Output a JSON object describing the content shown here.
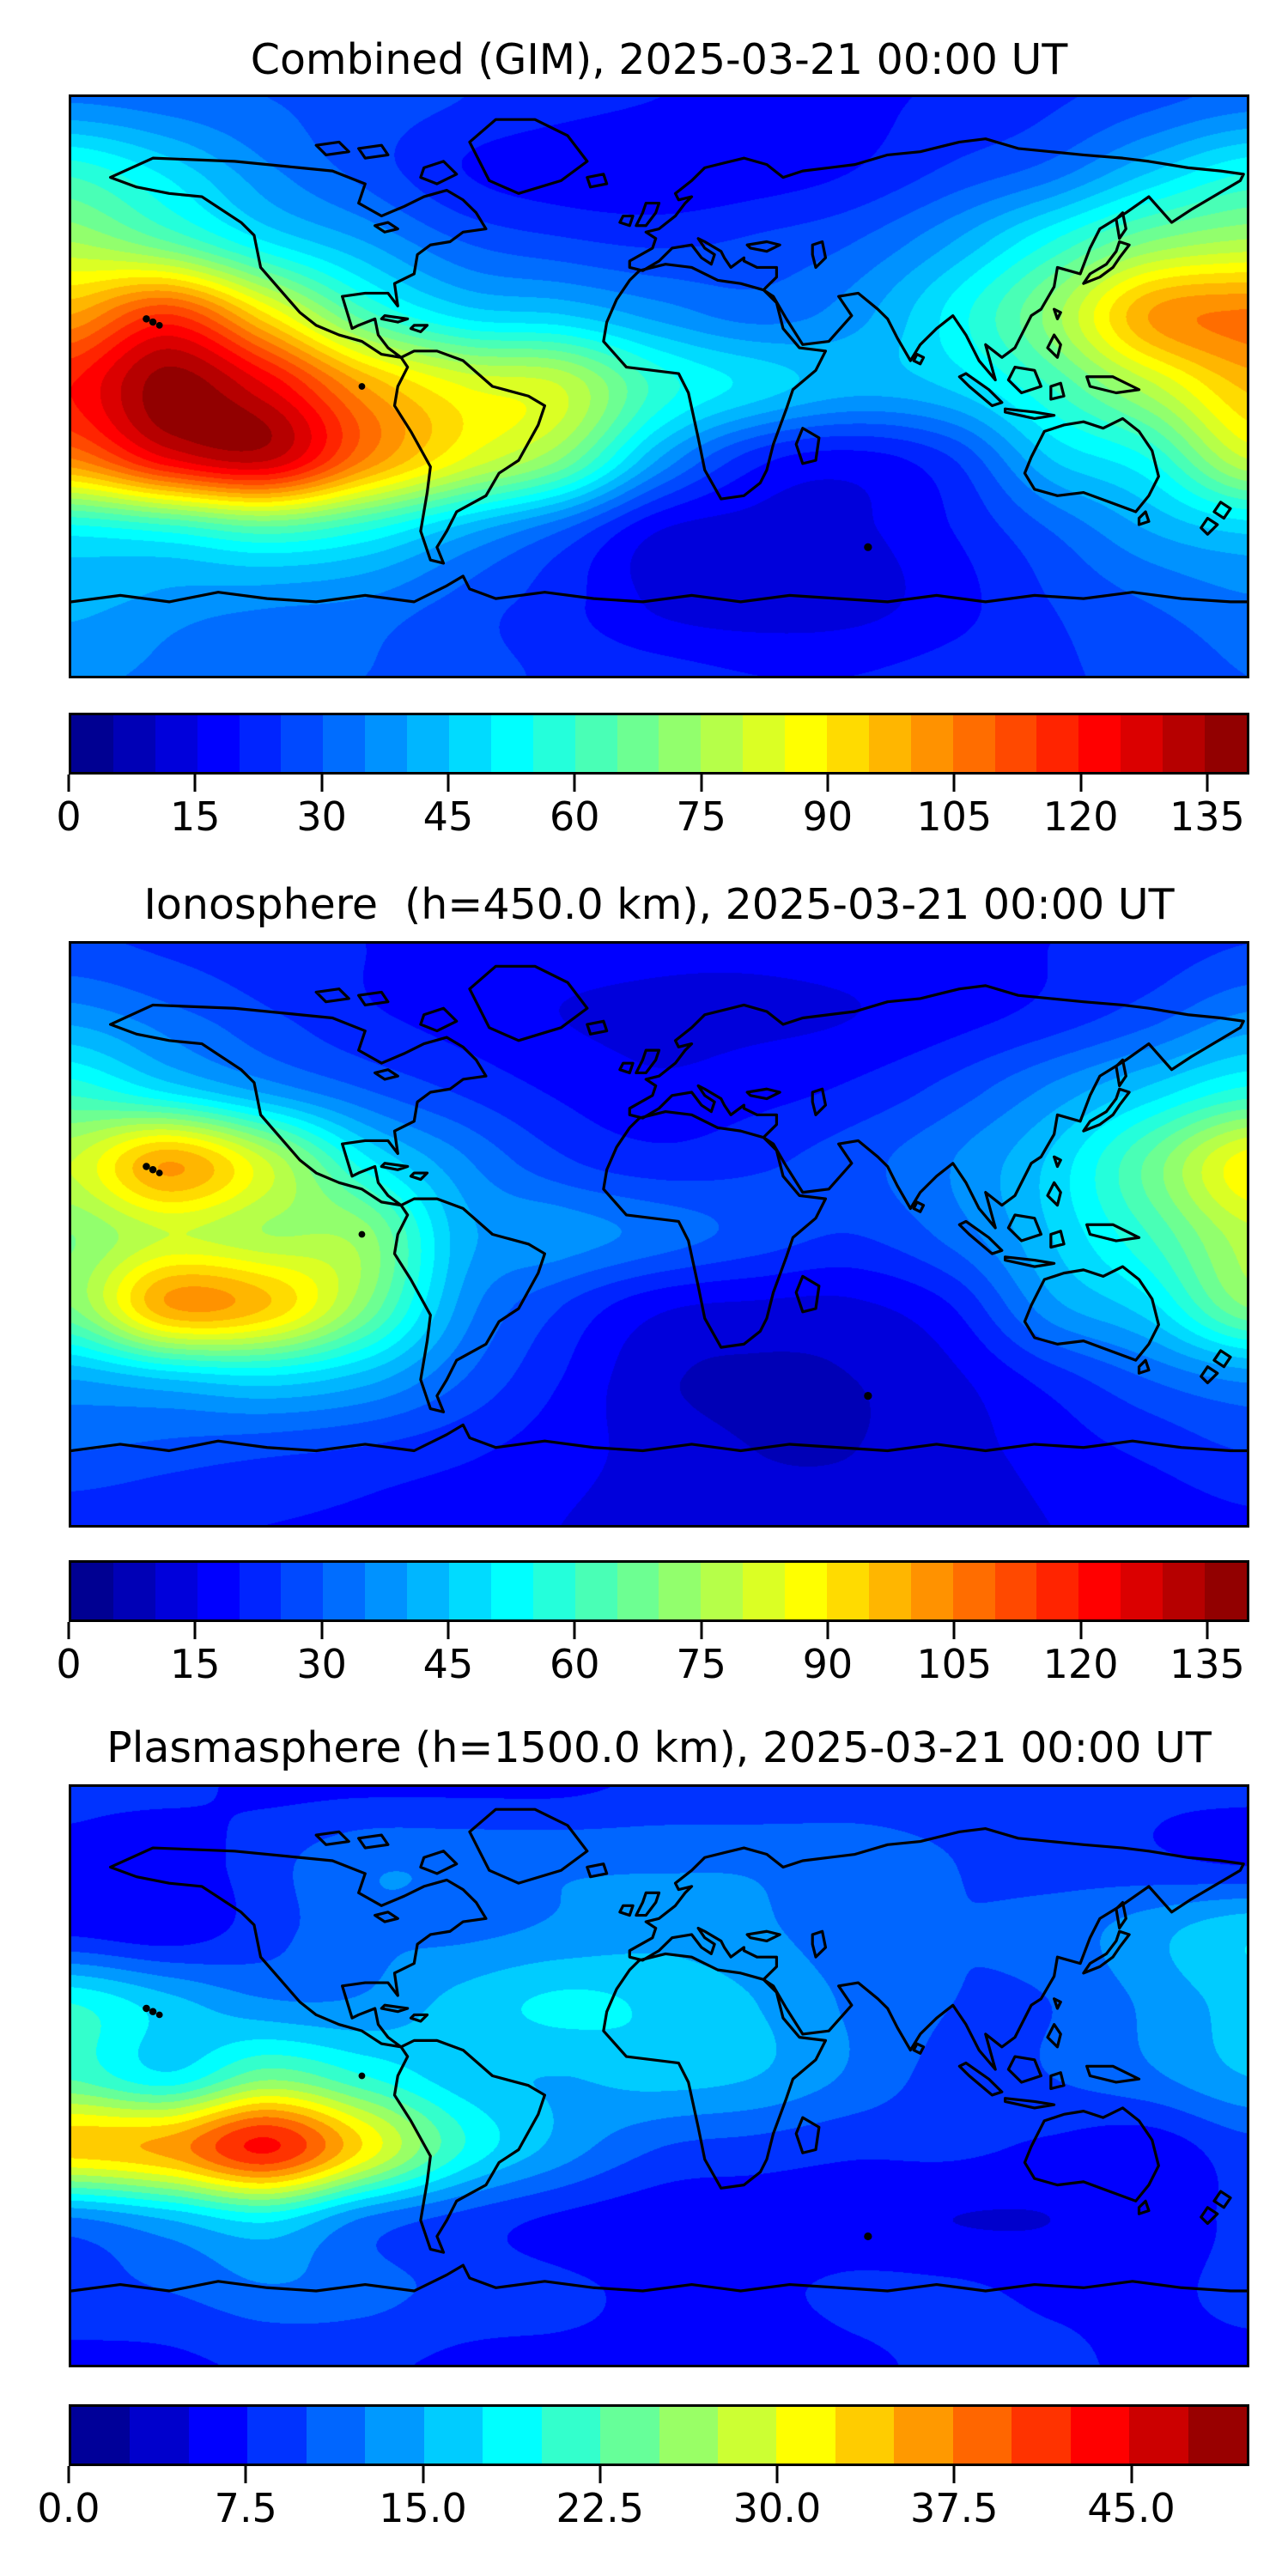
{
  "figure": {
    "background": "#ffffff",
    "text_color": "#000000"
  },
  "panels": [
    {
      "title": "Combined (GIM), 2025-03-21 00:00 UT"
    },
    {
      "title": "Ionosphere  (h=450.0 km), 2025-03-21 00:00 UT"
    },
    {
      "title": "Plasmasphere (h=1500.0 km), 2025-03-21 00:00 UT"
    }
  ],
  "chart_data": [
    {
      "type": "heatmap",
      "title": "Combined (GIM), 2025-03-21 00:00 UT",
      "colormap": "jet",
      "projection": "equirectangular world map with black coastlines",
      "xlabel": "",
      "ylabel": "",
      "lon": [
        -180,
        -150,
        -120,
        -90,
        -60,
        -30,
        0,
        30,
        60,
        90,
        120,
        150,
        180
      ],
      "lat": [
        80,
        60,
        40,
        20,
        0,
        -20,
        -40,
        -60,
        -80
      ],
      "values": [
        [
          34,
          32,
          30,
          28,
          25,
          22,
          20,
          19,
          19,
          21,
          24,
          28,
          32
        ],
        [
          58,
          48,
          36,
          28,
          20,
          17,
          16,
          17,
          20,
          26,
          32,
          44,
          54
        ],
        [
          75,
          65,
          50,
          40,
          30,
          26,
          24,
          26,
          30,
          40,
          55,
          70,
          76
        ],
        [
          100,
          115,
          90,
          62,
          48,
          45,
          38,
          33,
          38,
          52,
          72,
          100,
          106
        ],
        [
          120,
          138,
          125,
          100,
          85,
          80,
          58,
          48,
          42,
          46,
          60,
          78,
          96
        ],
        [
          105,
          125,
          131,
          105,
          85,
          70,
          40,
          22,
          18,
          25,
          45,
          55,
          80
        ],
        [
          52,
          56,
          62,
          55,
          42,
          30,
          15,
          13,
          14,
          20,
          30,
          40,
          46
        ],
        [
          42,
          38,
          36,
          34,
          28,
          22,
          14,
          12,
          13,
          18,
          25,
          30,
          34
        ],
        [
          36,
          34,
          32,
          30,
          27,
          24,
          22,
          20,
          20,
          22,
          24,
          27,
          30
        ]
      ],
      "vmin": 0,
      "vmax": 140,
      "contour_step": 5,
      "colorbar": {
        "orientation": "horizontal",
        "tick_values": [
          0,
          15,
          30,
          45,
          60,
          75,
          90,
          105,
          120,
          135
        ],
        "tick_labels": [
          "0",
          "15",
          "30",
          "45",
          "60",
          "75",
          "90",
          "105",
          "120",
          "135"
        ]
      }
    },
    {
      "type": "heatmap",
      "title": "Ionosphere  (h=450.0 km), 2025-03-21 00:00 UT",
      "colormap": "jet",
      "projection": "equirectangular world map with black coastlines",
      "xlabel": "",
      "ylabel": "",
      "lon": [
        -180,
        -150,
        -120,
        -90,
        -60,
        -30,
        0,
        30,
        60,
        90,
        120,
        150,
        180
      ],
      "lat": [
        80,
        60,
        40,
        20,
        0,
        -20,
        -40,
        -60,
        -80
      ],
      "values": [
        [
          26,
          24,
          22,
          20,
          18,
          17,
          16,
          16,
          17,
          18,
          20,
          22,
          25
        ],
        [
          38,
          32,
          26,
          21,
          18,
          15,
          14,
          14,
          15,
          18,
          22,
          28,
          36
        ],
        [
          58,
          48,
          38,
          30,
          24,
          19,
          16,
          18,
          21,
          27,
          36,
          46,
          56
        ],
        [
          80,
          100,
          80,
          52,
          36,
          26,
          22,
          24,
          28,
          35,
          46,
          66,
          88
        ],
        [
          70,
          80,
          75,
          72,
          42,
          38,
          33,
          28,
          25,
          32,
          45,
          60,
          78
        ],
        [
          70,
          100,
          95,
          70,
          38,
          25,
          16,
          14,
          14,
          20,
          38,
          48,
          70
        ],
        [
          40,
          45,
          48,
          42,
          30,
          20,
          11,
          9,
          10,
          14,
          22,
          30,
          36
        ],
        [
          30,
          28,
          26,
          24,
          21,
          17,
          13,
          10,
          10,
          13,
          17,
          21,
          25
        ],
        [
          22,
          21,
          20,
          19,
          17,
          15,
          13,
          12,
          12,
          13,
          15,
          17,
          19
        ]
      ],
      "vmin": 0,
      "vmax": 140,
      "contour_step": 5,
      "colorbar": {
        "orientation": "horizontal",
        "tick_values": [
          0,
          15,
          30,
          45,
          60,
          75,
          90,
          105,
          120,
          135
        ],
        "tick_labels": [
          "0",
          "15",
          "30",
          "45",
          "60",
          "75",
          "90",
          "105",
          "120",
          "135"
        ]
      }
    },
    {
      "type": "heatmap",
      "title": "Plasmasphere (h=1500.0 km), 2025-03-21 00:00 UT",
      "colormap": "jet",
      "projection": "equirectangular world map with black coastlines",
      "xlabel": "",
      "ylabel": "",
      "lon": [
        -180,
        -150,
        -120,
        -90,
        -60,
        -30,
        0,
        30,
        60,
        90,
        120,
        150,
        180
      ],
      "lat": [
        80,
        60,
        40,
        20,
        0,
        -20,
        -40,
        -60,
        -80
      ],
      "values": [
        [
          8,
          8,
          7,
          7,
          7,
          7,
          8,
          8,
          9,
          9,
          9,
          8,
          8
        ],
        [
          7,
          6,
          9,
          12,
          12,
          12,
          12,
          12,
          11,
          10,
          9,
          8,
          7
        ],
        [
          7,
          6,
          9,
          12,
          12,
          13,
          14,
          13,
          11,
          10,
          11,
          14,
          17
        ],
        [
          20,
          16,
          13,
          13,
          16,
          18,
          17,
          15,
          12,
          10,
          10,
          13,
          16
        ],
        [
          22,
          18,
          24,
          20,
          16,
          15,
          16,
          15,
          12,
          9,
          10,
          12,
          15
        ],
        [
          34,
          36,
          43,
          32,
          20,
          14,
          10,
          9,
          8,
          8,
          7,
          6,
          9
        ],
        [
          12,
          15,
          18,
          12,
          9,
          7,
          6,
          6,
          6,
          5,
          5,
          6,
          8
        ],
        [
          9,
          10,
          12,
          11,
          9,
          8,
          7,
          7,
          8,
          8,
          7,
          7,
          8
        ],
        [
          7,
          7,
          8,
          8,
          7,
          7,
          7,
          6,
          7,
          8,
          8,
          7,
          7
        ]
      ],
      "vmin": 0,
      "vmax": 50,
      "contour_step": 2.5,
      "colorbar": {
        "orientation": "horizontal",
        "tick_values": [
          0,
          7.5,
          15,
          22.5,
          30,
          37.5,
          45
        ],
        "tick_labels": [
          "0.0",
          "7.5",
          "15.0",
          "22.5",
          "30.0",
          "37.5",
          "45.0"
        ]
      }
    }
  ]
}
